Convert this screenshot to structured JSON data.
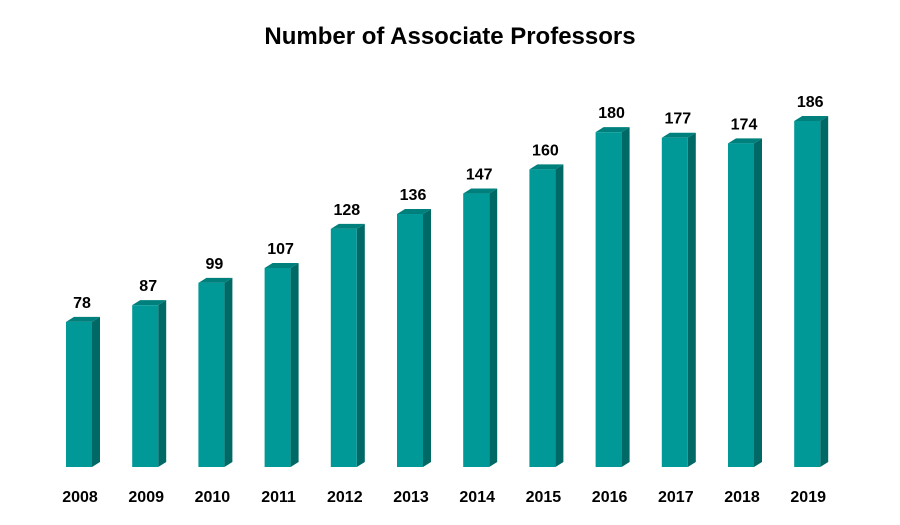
{
  "chart_data": {
    "type": "bar",
    "title": "Number of Associate Professors",
    "categories": [
      "2008",
      "2009",
      "2010",
      "2011",
      "2012",
      "2013",
      "2014",
      "2015",
      "2016",
      "2017",
      "2018",
      "2019"
    ],
    "values": [
      78,
      87,
      99,
      107,
      128,
      136,
      147,
      160,
      180,
      177,
      174,
      186
    ],
    "data_labels": [
      "78",
      "87",
      "99",
      "107",
      "128",
      "136",
      "147",
      "160",
      "180",
      "177",
      "174",
      "186"
    ],
    "xlabel": "",
    "ylabel": "",
    "ylim": [
      0,
      186
    ],
    "grid": false,
    "legend": "none",
    "style": "3d-column",
    "colors": {
      "front": "#009997",
      "side": "#006965",
      "top": "#00807c"
    }
  }
}
